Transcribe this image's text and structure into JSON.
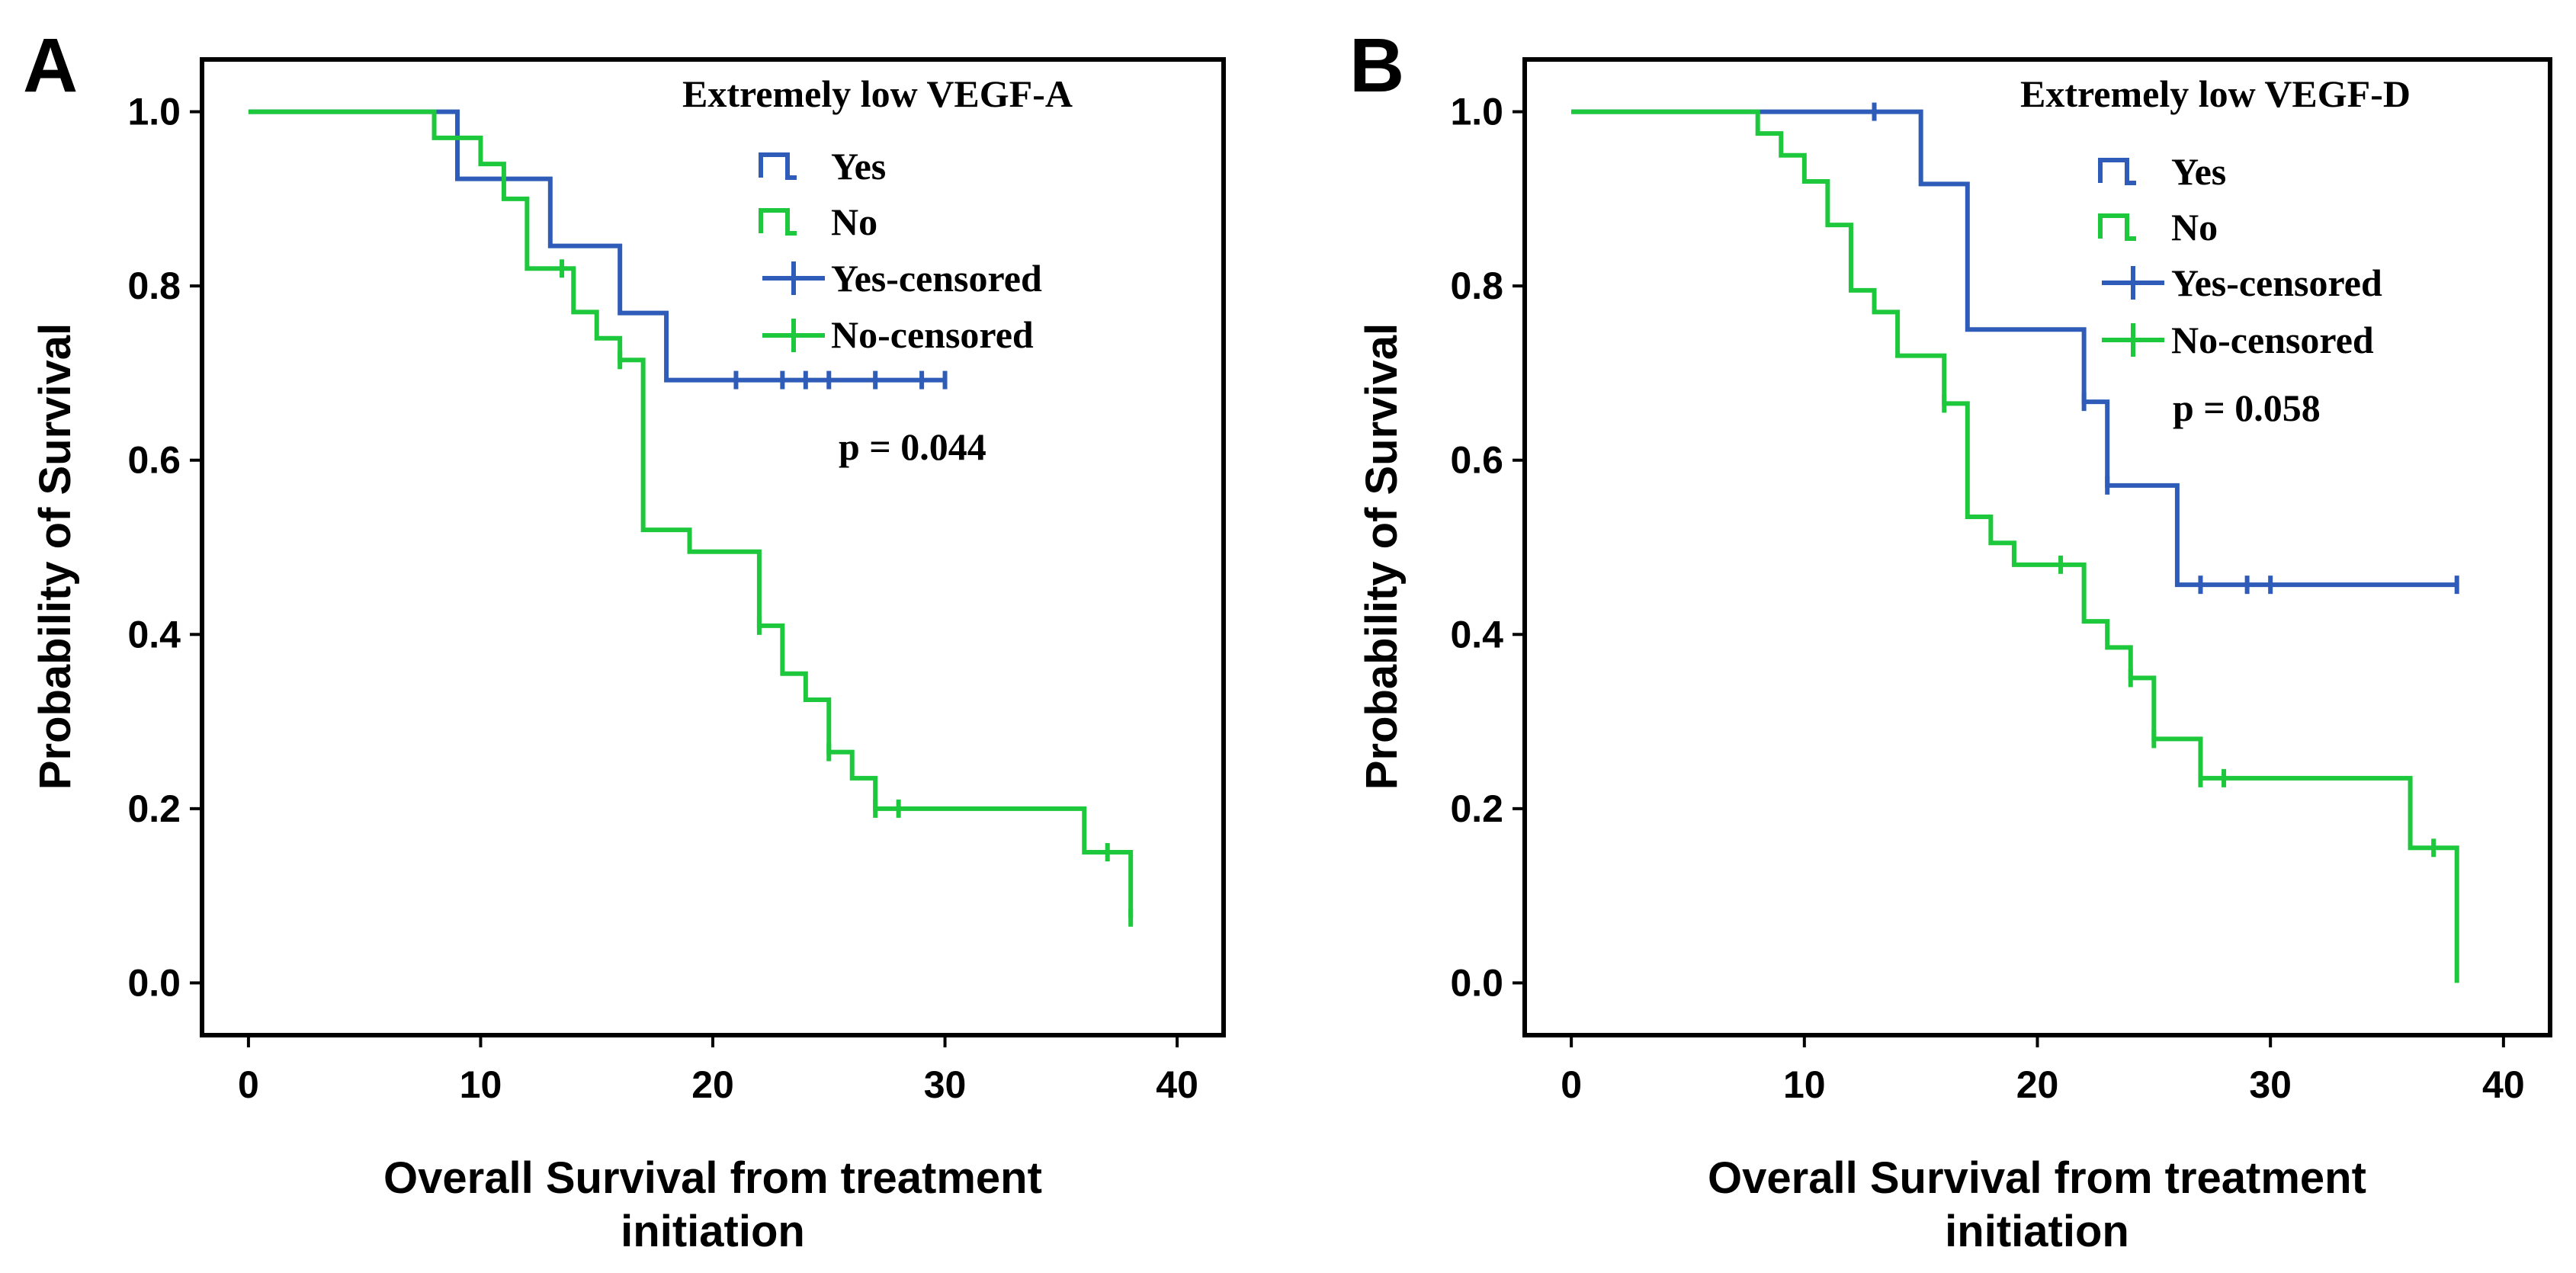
{
  "colors": {
    "yes": "#2e5cb8",
    "no": "#1ec83c"
  },
  "chart_data": [
    {
      "type": "line",
      "panel_label": "A",
      "title": "Extremely low VEGF-A",
      "xlabel": "Overall Survival from treatment initiation",
      "xlabel_lines": [
        "Overall Survival from treatment",
        "initiation"
      ],
      "ylabel": "Probability of Survival",
      "xlim": [
        -2,
        42
      ],
      "ylim": [
        -0.06,
        1.06
      ],
      "xticks": [
        0,
        10,
        20,
        30,
        40
      ],
      "yticks": [
        0.0,
        0.2,
        0.4,
        0.6,
        0.8,
        1.0
      ],
      "xtick_labels": [
        "0",
        "10",
        "20",
        "30",
        "40"
      ],
      "ytick_labels": [
        "0.0",
        "0.2",
        "0.4",
        "0.6",
        "0.8",
        "1.0"
      ],
      "legend": [
        "Yes",
        "No",
        "Yes-censored",
        "No-censored"
      ],
      "annotation": "p = 0.044",
      "series": [
        {
          "name": "Yes",
          "color_key": "yes",
          "steps": [
            [
              0,
              1.0
            ],
            [
              9,
              0.923
            ],
            [
              13,
              0.846
            ],
            [
              16,
              0.769
            ],
            [
              18,
              0.692
            ]
          ],
          "end_x": 30,
          "censored": [
            [
              21,
              0.692
            ],
            [
              23,
              0.692
            ],
            [
              24,
              0.692
            ],
            [
              25,
              0.692
            ],
            [
              27,
              0.692
            ],
            [
              29,
              0.692
            ],
            [
              30,
              0.692
            ]
          ]
        },
        {
          "name": "No",
          "color_key": "no",
          "steps": [
            [
              0,
              1.0
            ],
            [
              8,
              0.97
            ],
            [
              10,
              0.94
            ],
            [
              11,
              0.9
            ],
            [
              12,
              0.82
            ],
            [
              14,
              0.77
            ],
            [
              15,
              0.74
            ],
            [
              16,
              0.715
            ],
            [
              17,
              0.52
            ],
            [
              19,
              0.495
            ],
            [
              22,
              0.41
            ],
            [
              23,
              0.355
            ],
            [
              24,
              0.325
            ],
            [
              25,
              0.265
            ],
            [
              26,
              0.235
            ],
            [
              27,
              0.2
            ],
            [
              36,
              0.15
            ],
            [
              38,
              0.075
            ]
          ],
          "end_x": 38,
          "censored": [
            [
              13.5,
              0.82
            ],
            [
              16,
              0.715
            ],
            [
              22,
              0.41
            ],
            [
              25,
              0.265
            ],
            [
              27,
              0.2
            ],
            [
              28,
              0.2
            ],
            [
              37,
              0.15
            ],
            [
              38,
              0.075
            ]
          ]
        }
      ]
    },
    {
      "type": "line",
      "panel_label": "B",
      "title": "Extremely low VEGF-D",
      "xlabel": "Overall Survival from treatment initiation",
      "xlabel_lines": [
        "Overall Survival from treatment",
        "initiation"
      ],
      "ylabel": "Probability of Survival",
      "xlim": [
        -2,
        42
      ],
      "ylim": [
        -0.06,
        1.06
      ],
      "xticks": [
        0,
        10,
        20,
        30,
        40
      ],
      "yticks": [
        0.0,
        0.2,
        0.4,
        0.6,
        0.8,
        1.0
      ],
      "xtick_labels": [
        "0",
        "10",
        "20",
        "30",
        "40"
      ],
      "ytick_labels": [
        "0.0",
        "0.2",
        "0.4",
        "0.6",
        "0.8",
        "1.0"
      ],
      "legend": [
        "Yes",
        "No",
        "Yes-censored",
        "No-censored"
      ],
      "annotation": "p = 0.058",
      "series": [
        {
          "name": "Yes",
          "color_key": "yes",
          "steps": [
            [
              0,
              1.0
            ],
            [
              15,
              0.917
            ],
            [
              17,
              0.75
            ],
            [
              22,
              0.667
            ],
            [
              23,
              0.571
            ],
            [
              26,
              0.457
            ]
          ],
          "end_x": 38,
          "censored": [
            [
              13,
              1.0
            ],
            [
              22,
              0.667
            ],
            [
              23,
              0.571
            ],
            [
              27,
              0.457
            ],
            [
              29,
              0.457
            ],
            [
              30,
              0.457
            ],
            [
              38,
              0.457
            ]
          ]
        },
        {
          "name": "No",
          "color_key": "no",
          "steps": [
            [
              0,
              1.0
            ],
            [
              8,
              0.975
            ],
            [
              9,
              0.95
            ],
            [
              10,
              0.92
            ],
            [
              11,
              0.87
            ],
            [
              12,
              0.795
            ],
            [
              13,
              0.77
            ],
            [
              14,
              0.72
            ],
            [
              16,
              0.665
            ],
            [
              17,
              0.535
            ],
            [
              18,
              0.505
            ],
            [
              19,
              0.48
            ],
            [
              22,
              0.415
            ],
            [
              23,
              0.385
            ],
            [
              24,
              0.35
            ],
            [
              25,
              0.28
            ],
            [
              27,
              0.235
            ],
            [
              36,
              0.155
            ],
            [
              38,
              0.0
            ]
          ],
          "end_x": 38,
          "censored": [
            [
              16,
              0.665
            ],
            [
              21,
              0.48
            ],
            [
              24,
              0.35
            ],
            [
              25,
              0.28
            ],
            [
              27,
              0.235
            ],
            [
              28,
              0.235
            ],
            [
              37,
              0.155
            ]
          ]
        }
      ]
    }
  ]
}
